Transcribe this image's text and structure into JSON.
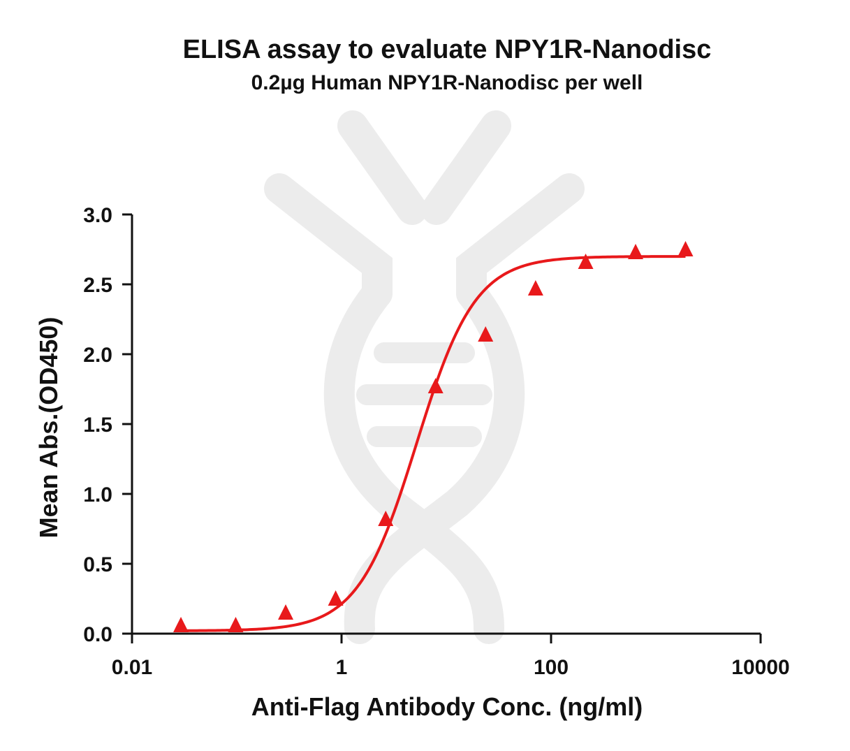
{
  "chart_data": {
    "type": "scatter",
    "title": "ELISA assay to evaluate NPY1R-Nanodisc",
    "subtitle": "0.2µg Human NPY1R-Nanodisc per well",
    "xlabel": "Anti-Flag Antibody Conc. (ng/ml)",
    "ylabel": "Mean Abs.(OD450)",
    "x_scale": "log",
    "xlim": [
      0.01,
      10000
    ],
    "ylim": [
      0,
      3.0
    ],
    "x_ticks": [
      {
        "value": 0.01,
        "label": "0.01"
      },
      {
        "value": 1,
        "label": "1"
      },
      {
        "value": 100,
        "label": "100"
      },
      {
        "value": 10000,
        "label": "10000"
      }
    ],
    "y_ticks": [
      {
        "value": 0.0,
        "label": "0.0"
      },
      {
        "value": 0.5,
        "label": "0.5"
      },
      {
        "value": 1.0,
        "label": "1.0"
      },
      {
        "value": 1.5,
        "label": "1.5"
      },
      {
        "value": 2.0,
        "label": "2.0"
      },
      {
        "value": 2.5,
        "label": "2.5"
      },
      {
        "value": 3.0,
        "label": "3.0"
      }
    ],
    "grid": false,
    "legend": "none",
    "marker": "triangle",
    "color": "#e8191b",
    "points": [
      {
        "x": 0.0293,
        "y": 0.05
      },
      {
        "x": 0.0977,
        "y": 0.05
      },
      {
        "x": 0.293,
        "y": 0.14
      },
      {
        "x": 0.879,
        "y": 0.24
      },
      {
        "x": 2.64,
        "y": 0.81
      },
      {
        "x": 7.91,
        "y": 1.76
      },
      {
        "x": 23.7,
        "y": 2.13
      },
      {
        "x": 71.2,
        "y": 2.46
      },
      {
        "x": 214,
        "y": 2.65
      },
      {
        "x": 641,
        "y": 2.72
      },
      {
        "x": 1920,
        "y": 2.74
      }
    ],
    "fit_curve": {
      "model": "4PL",
      "bottom": 0.02,
      "top": 2.7,
      "ec50": 5.2,
      "hill": 1.55
    }
  }
}
